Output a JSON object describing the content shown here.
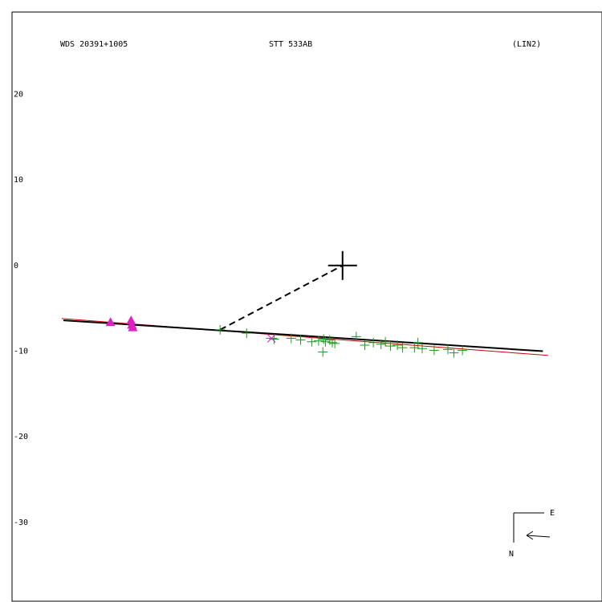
{
  "header": {
    "wds_id": "WDS 20391+1005",
    "pair_name": "STT 533AB",
    "fit_type": "(LIN2)"
  },
  "compass": {
    "east_label": "E",
    "north_label": "N"
  },
  "colors": {
    "frame": "#000000",
    "fit_line": "#000000",
    "reference_line": "#cc0000",
    "observation": "#1a9a1a",
    "early_observation": "#e020c0",
    "reference_star": "#000000"
  },
  "chart_data": {
    "type": "scatter",
    "title": "",
    "xlabel": "",
    "ylabel": "",
    "x_direction": "reversed",
    "xlim": [
      38.6,
      -30.3
    ],
    "ylim": [
      -39.2,
      29.6
    ],
    "y_ticks": [
      20,
      10,
      0,
      -10,
      -20,
      -30
    ],
    "grid": false,
    "primary_star": {
      "x": 0,
      "y": 0,
      "marker": "large-plus"
    },
    "linear_fit": {
      "style": "solid",
      "color": "black",
      "points": [
        [
          32.6,
          -6.4
        ],
        [
          -23.4,
          -10.0
        ]
      ]
    },
    "reference_fit": {
      "style": "solid",
      "color": "red",
      "points": [
        [
          32.8,
          -6.2
        ],
        [
          -24.0,
          -10.5
        ]
      ]
    },
    "projection_to_primary": {
      "style": "dashed",
      "points": [
        [
          14.3,
          -7.5
        ],
        [
          0,
          0
        ]
      ]
    },
    "highlighted_point": {
      "x": 8.3,
      "y": -8.5,
      "marker": "asterisk",
      "color": "magenta"
    },
    "early_observations": {
      "marker": "filled-triangle",
      "color": "magenta",
      "points": [
        [
          27.1,
          -6.6
        ],
        [
          24.7,
          -6.4
        ],
        [
          24.6,
          -6.9
        ],
        [
          24.5,
          -7.2
        ]
      ]
    },
    "observations": {
      "marker": "plus",
      "color": "green",
      "points": [
        [
          14.3,
          -7.5
        ],
        [
          11.2,
          -7.9
        ],
        [
          8.0,
          -8.6
        ],
        [
          6.0,
          -8.5
        ],
        [
          4.9,
          -8.7
        ],
        [
          3.6,
          -8.9
        ],
        [
          2.8,
          -8.8
        ],
        [
          2.2,
          -8.6
        ],
        [
          1.5,
          -8.7
        ],
        [
          2.3,
          -10.1
        ],
        [
          2.0,
          -8.9
        ],
        [
          1.2,
          -9.0
        ],
        [
          0.9,
          -9.1
        ],
        [
          -1.6,
          -8.3
        ],
        [
          -2.6,
          -9.3
        ],
        [
          -3.6,
          -9.0
        ],
        [
          -4.5,
          -9.2
        ],
        [
          -5.0,
          -8.9
        ],
        [
          -5.6,
          -9.4
        ],
        [
          -6.4,
          -9.3
        ],
        [
          -7.0,
          -9.6
        ],
        [
          -8.4,
          -9.6
        ],
        [
          -8.8,
          -9.0
        ],
        [
          -9.3,
          -9.7
        ],
        [
          -10.7,
          -9.9
        ],
        [
          -12.3,
          -9.8
        ],
        [
          -13.0,
          -10.2
        ],
        [
          -14.0,
          -9.9
        ]
      ]
    }
  }
}
